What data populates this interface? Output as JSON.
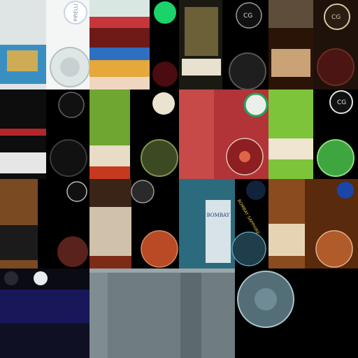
{
  "texture_atlas": {
    "cap_prints": {
      "tile_1_cap": "PIRELLI",
      "tile_3_cap": "CG",
      "tile_4_cap": "CG",
      "tile_8_cap": "CG",
      "tile_12_cap": "BOMBAY SAPPHIRE"
    },
    "label_prints": {
      "tile_11_label": "BOMBAY"
    },
    "colors": {
      "background": "#000000",
      "red_label": "#b23438",
      "green_bottle": "#6fa531",
      "lime_bottle": "#7ec43a",
      "blue_bottle": "#2c6b7e",
      "amber_bottle": "#8a4c1e",
      "navy_label": "#17175a"
    }
  }
}
